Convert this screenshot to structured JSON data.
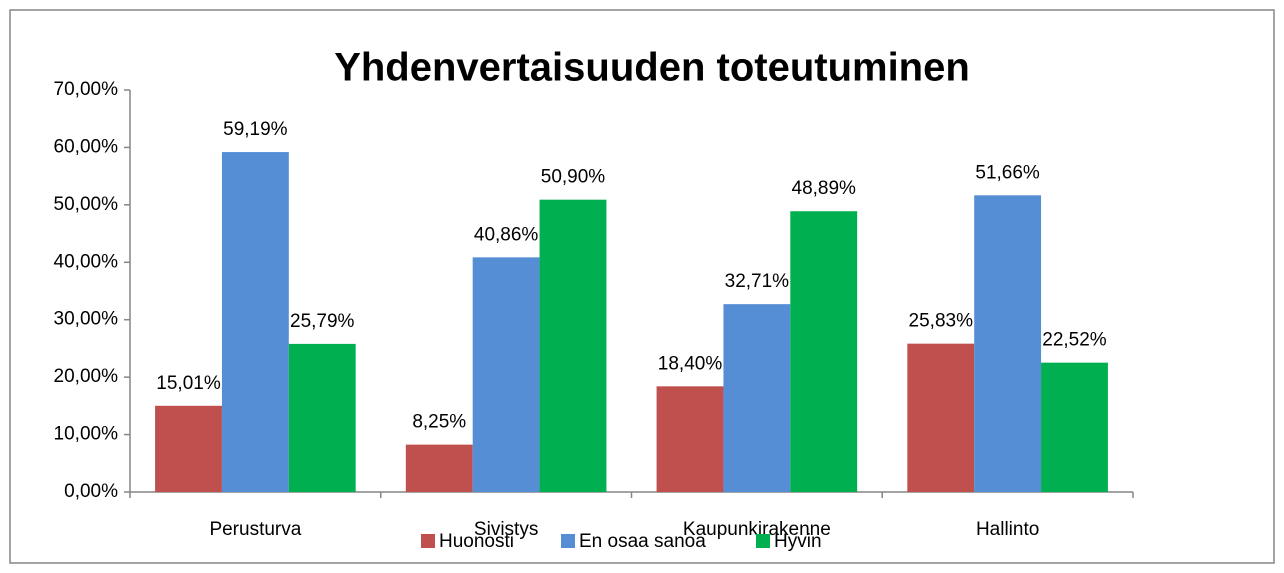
{
  "chart_data": {
    "type": "bar",
    "title": "Yhdenvertaisuuden toteutuminen",
    "categories": [
      "Perusturva",
      "Sivistys",
      "Kaupunkirakenne",
      "Hallinto"
    ],
    "series": [
      {
        "name": "Huonosti",
        "color": "#c0504d",
        "values": [
          15.01,
          8.25,
          18.4,
          25.83
        ],
        "value_labels": [
          "15,01%",
          "8,25%",
          "18,40%",
          "25,83%"
        ]
      },
      {
        "name": "En osaa sanoa",
        "color": "#558ed5",
        "values": [
          59.19,
          40.86,
          32.71,
          51.66
        ],
        "value_labels": [
          "59,19%",
          "40,86%",
          "32,71%",
          "51,66%"
        ]
      },
      {
        "name": "Hyvin",
        "color": "#00b050",
        "values": [
          25.79,
          50.9,
          48.89,
          22.52
        ],
        "value_labels": [
          "25,79%",
          "50,90%",
          "48,89%",
          "22,52%"
        ]
      }
    ],
    "ylim": [
      0,
      70
    ],
    "yticks": [
      {
        "value": 0,
        "label": "0,00%"
      },
      {
        "value": 10,
        "label": "10,00%"
      },
      {
        "value": 20,
        "label": "20,00%"
      },
      {
        "value": 30,
        "label": "30,00%"
      },
      {
        "value": 40,
        "label": "40,00%"
      },
      {
        "value": 50,
        "label": "50,00%"
      },
      {
        "value": 60,
        "label": "60,00%"
      },
      {
        "value": 70,
        "label": "70,00%"
      }
    ],
    "grid": false,
    "legend": "bottom"
  }
}
